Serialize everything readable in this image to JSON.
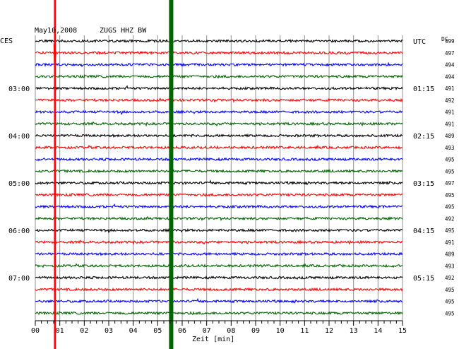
{
  "header": {
    "date": "May10,2008",
    "station": "ZUGS HHZ BW",
    "left_zone": "CES",
    "right_zone": "UTC",
    "dc_label": "DC"
  },
  "chart_data": {
    "type": "line",
    "xlabel": "Zeit [min]",
    "xlim": [
      0,
      15
    ],
    "x_ticks": [
      "00",
      "01",
      "02",
      "03",
      "04",
      "05",
      "06",
      "07",
      "08",
      "09",
      "10",
      "11",
      "12",
      "13",
      "14",
      "15"
    ],
    "trace_colors": [
      "#000000",
      "#ff0000",
      "#0000ff",
      "#006400"
    ],
    "left_hour_labels": [
      {
        "row": 4,
        "label": "03:00"
      },
      {
        "row": 8,
        "label": "04:00"
      },
      {
        "row": 12,
        "label": "05:00"
      },
      {
        "row": 16,
        "label": "06:00"
      },
      {
        "row": 20,
        "label": "07:00"
      }
    ],
    "right_hour_labels": [
      {
        "row": 0,
        "label": "UTC"
      },
      {
        "row": 4,
        "label": "01:15"
      },
      {
        "row": 8,
        "label": "02:15"
      },
      {
        "row": 12,
        "label": "03:15"
      },
      {
        "row": 16,
        "label": "04:15"
      },
      {
        "row": 20,
        "label": "05:15"
      }
    ],
    "dc_offsets": [
      499,
      497,
      494,
      494,
      491,
      492,
      491,
      491,
      489,
      493,
      495,
      495,
      497,
      495,
      495,
      492,
      495,
      491,
      489,
      493,
      492,
      495,
      495,
      495
    ],
    "markers": [
      {
        "minute": 0.8,
        "color": "#ff0000"
      },
      {
        "minute": 5.55,
        "color": "#006400"
      }
    ]
  }
}
